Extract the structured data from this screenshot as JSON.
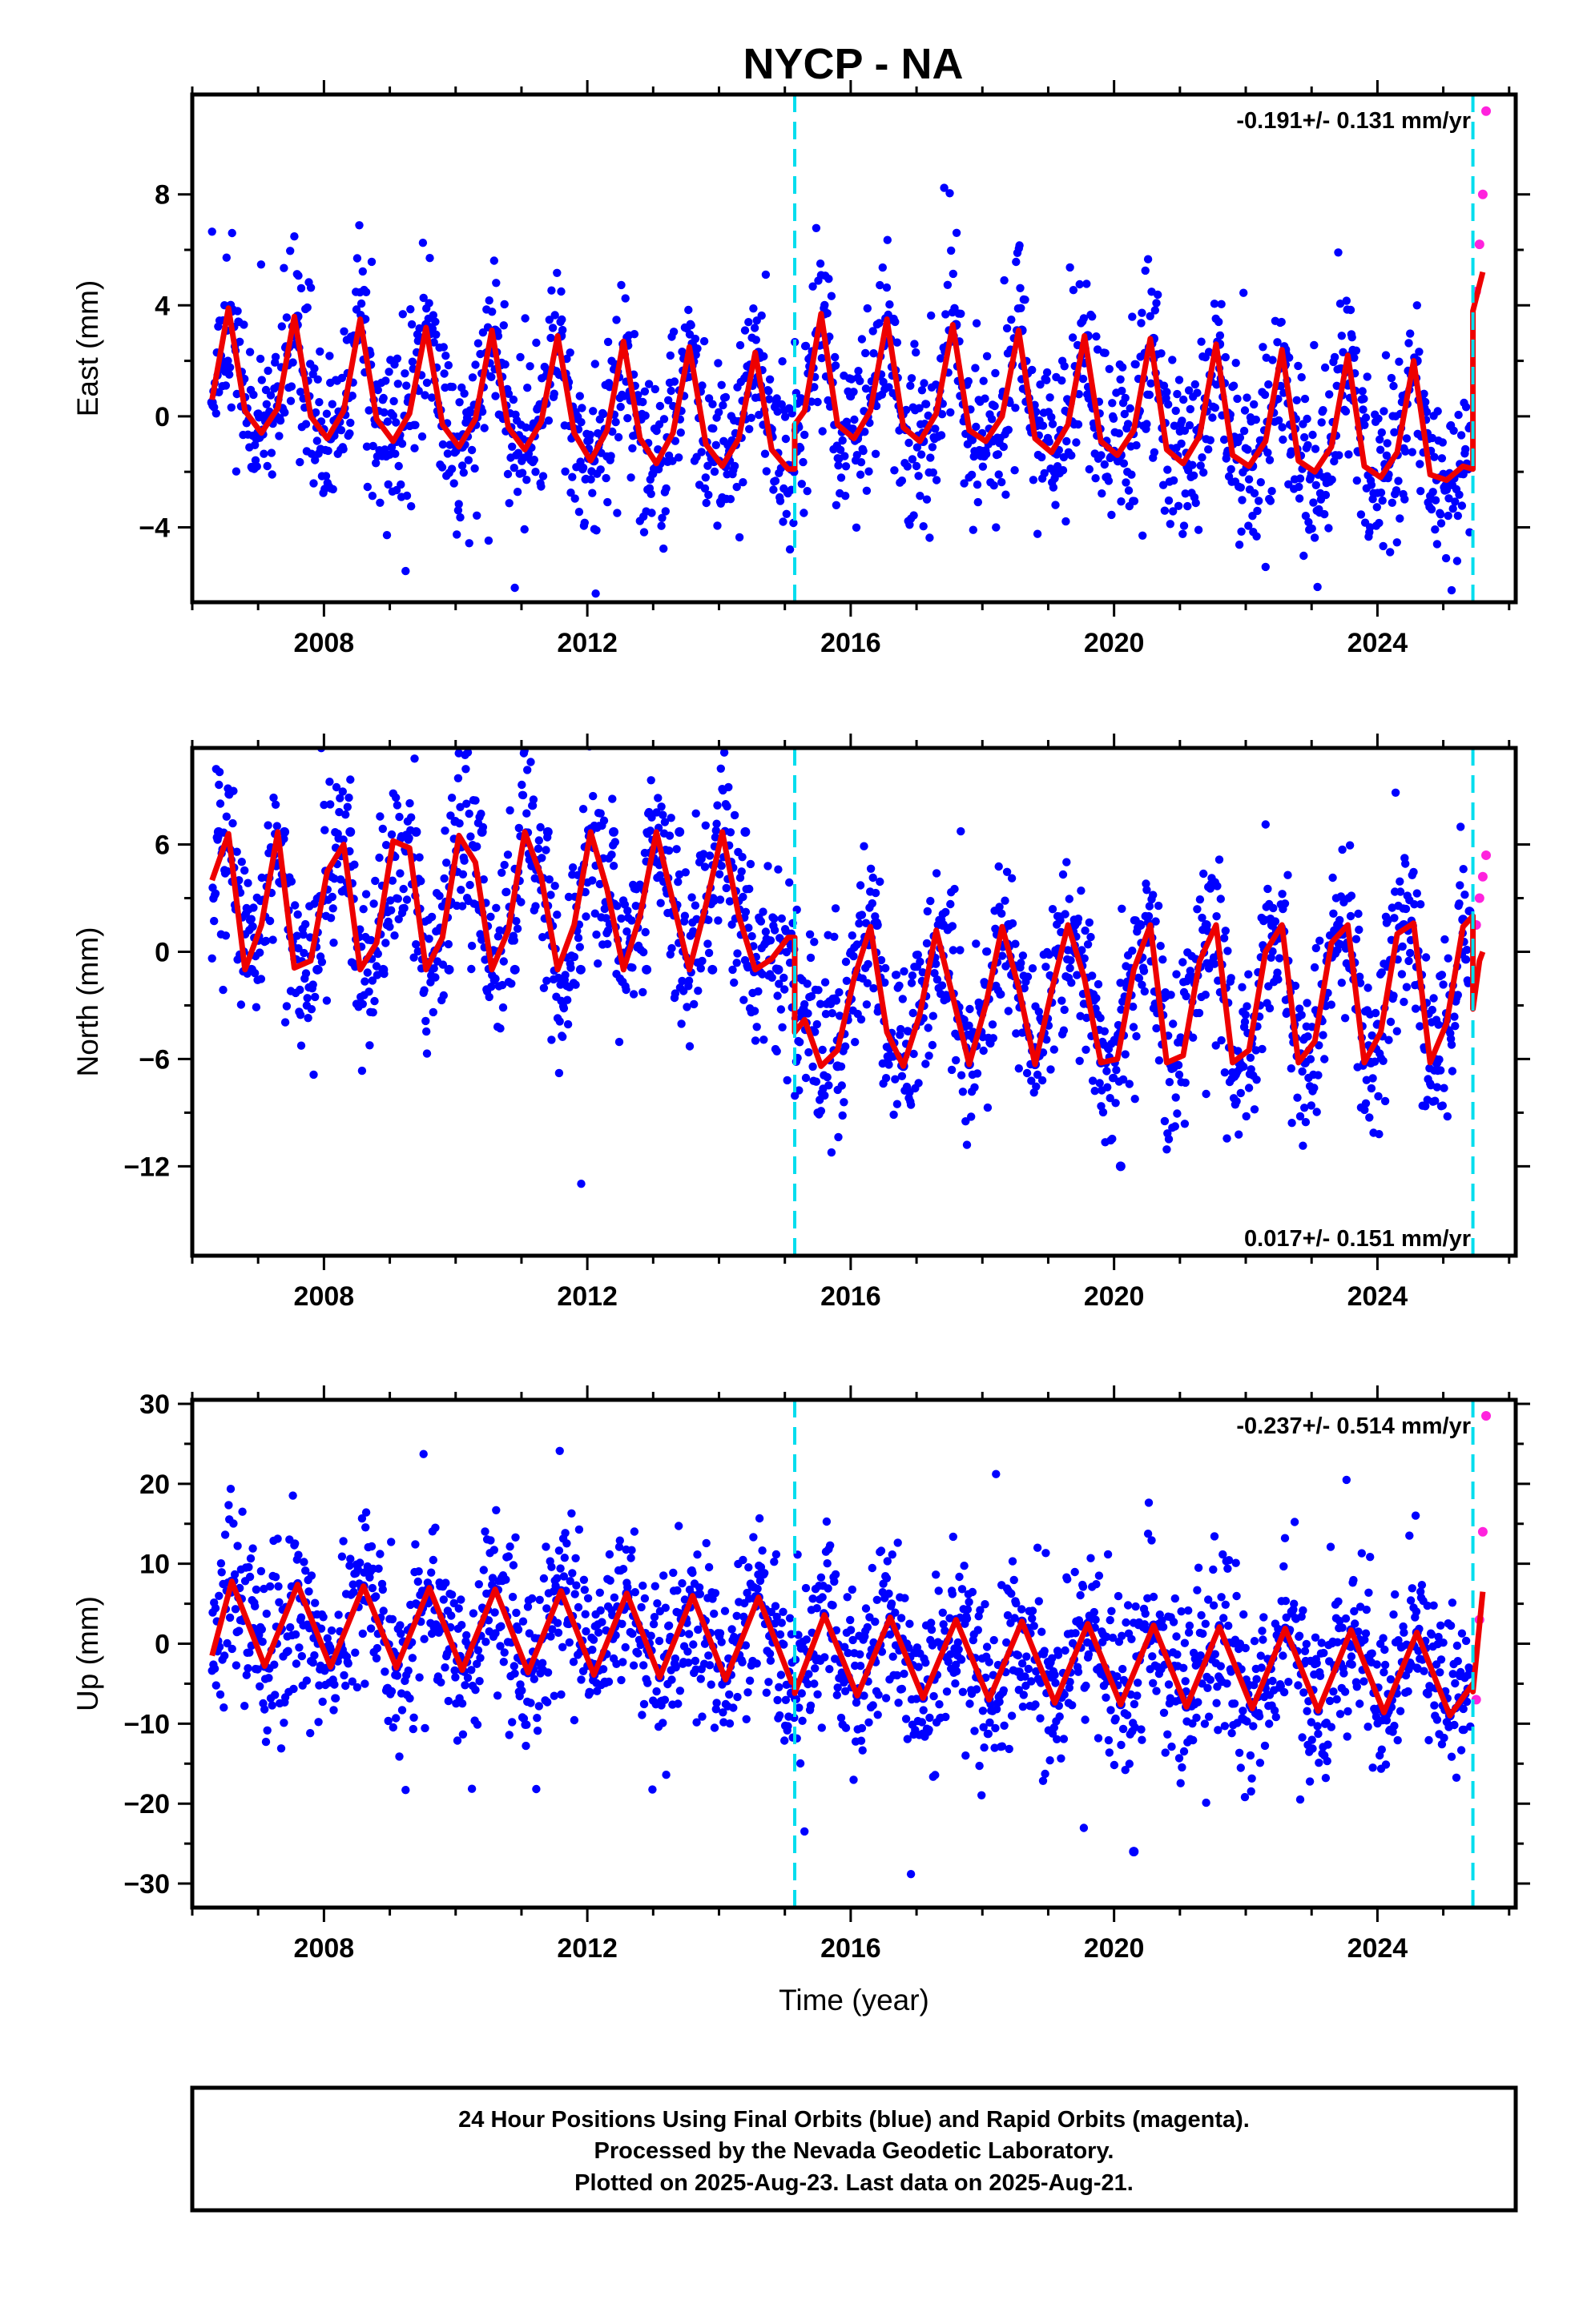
{
  "page": {
    "title": "NYCP - NA"
  },
  "caption": {
    "lines": [
      "24 Hour Positions Using Final Orbits (blue) and Rapid Orbits (magenta).",
      "Processed by the Nevada Geodetic Laboratory.",
      "Plotted on 2025-Aug-23. Last data on 2025-Aug-21."
    ]
  },
  "colors": {
    "final_orbits": "#0000ff",
    "rapid_orbits": "#ff22dd",
    "model": "#ee0000",
    "breaks": "#00ddee",
    "frame": "#000000"
  },
  "chart_data": [
    {
      "type": "scatter",
      "panel": "east",
      "title": "NYCP - NA",
      "xlabel": "",
      "ylabel": "East (mm)",
      "xlim": [
        2006.0,
        2026.1
      ],
      "ylim": [
        -6.7,
        11.6
      ],
      "xticks": [
        2008,
        2012,
        2016,
        2020,
        2024
      ],
      "xtick_labels": [
        "2008",
        "2012",
        "2016",
        "2020",
        "2024"
      ],
      "yticks": [
        -4,
        0,
        4,
        8
      ],
      "ytick_labels": [
        "−4",
        "0",
        "4",
        "8"
      ],
      "grid": false,
      "annotations": [
        {
          "text": "-0.191+/- 0.131 mm/yr",
          "position": "top-right"
        }
      ],
      "breaks": [
        2015.15,
        2025.45
      ],
      "series": [
        {
          "name": "Final Orbits",
          "kind": "points",
          "x": [
            2006.3,
            2006.6,
            2007.0,
            2007.6,
            2008.1,
            2008.6,
            2009.1,
            2009.6,
            2010.1,
            2010.6,
            2011.1,
            2011.6,
            2012.1,
            2012.6,
            2013.1,
            2013.6,
            2014.1,
            2014.6,
            2015.1,
            2015.6,
            2016.1,
            2016.6,
            2017.1,
            2017.6,
            2018.1,
            2018.6,
            2019.1,
            2019.6,
            2020.1,
            2020.6,
            2021.1,
            2021.6,
            2022.1,
            2022.6,
            2023.1,
            2023.6,
            2024.1,
            2024.6,
            2025.1
          ],
          "y": [
            0.5,
            3.8,
            -0.6,
            3.6,
            -0.8,
            3.5,
            -0.9,
            3.2,
            -1.1,
            3.1,
            -1.2,
            2.9,
            -1.6,
            2.7,
            -1.7,
            2.5,
            -1.8,
            2.3,
            -1.9,
            3.7,
            -0.8,
            3.5,
            -0.9,
            3.3,
            -0.9,
            3.1,
            -1.3,
            2.9,
            -1.4,
            2.8,
            -1.7,
            2.6,
            -1.8,
            2.4,
            -2.0,
            2.2,
            -2.2,
            2.0,
            -2.3
          ]
        },
        {
          "name": "Rapid Orbits",
          "kind": "points",
          "x": [
            2025.5,
            2025.55,
            2025.6,
            2025.65
          ],
          "y": [
            4.5,
            6.2,
            8.0,
            11.0
          ]
        },
        {
          "name": "Model",
          "kind": "line",
          "x": [
            2006.3,
            2006.55,
            2006.8,
            2007.05,
            2007.3,
            2007.55,
            2007.8,
            2008.05,
            2008.3,
            2008.55,
            2008.8,
            2009.05,
            2009.3,
            2009.55,
            2009.8,
            2010.05,
            2010.3,
            2010.55,
            2010.8,
            2011.05,
            2011.3,
            2011.55,
            2011.8,
            2012.05,
            2012.3,
            2012.55,
            2012.8,
            2013.05,
            2013.3,
            2013.55,
            2013.8,
            2014.05,
            2014.3,
            2014.55,
            2014.8,
            2015.05,
            2015.15,
            2015.15,
            2015.3,
            2015.55,
            2015.8,
            2016.05,
            2016.3,
            2016.55,
            2016.8,
            2017.05,
            2017.3,
            2017.55,
            2017.8,
            2018.05,
            2018.3,
            2018.55,
            2018.8,
            2019.05,
            2019.3,
            2019.55,
            2019.8,
            2020.05,
            2020.3,
            2020.55,
            2020.8,
            2021.05,
            2021.3,
            2021.55,
            2021.8,
            2022.05,
            2022.3,
            2022.55,
            2022.8,
            2023.05,
            2023.3,
            2023.55,
            2023.8,
            2024.05,
            2024.3,
            2024.55,
            2024.8,
            2025.05,
            2025.3,
            2025.45,
            2025.45,
            2025.6
          ],
          "y": [
            0.6,
            3.9,
            0.2,
            -0.6,
            0.3,
            3.6,
            0.0,
            -0.8,
            0.2,
            3.5,
            -0.1,
            -0.9,
            0.1,
            3.2,
            -0.3,
            -1.1,
            -0.1,
            3.1,
            -0.4,
            -1.2,
            -0.2,
            2.9,
            -0.6,
            -1.6,
            -0.5,
            2.7,
            -0.8,
            -1.7,
            -0.6,
            2.5,
            -1.0,
            -1.8,
            -0.8,
            2.3,
            -1.2,
            -1.9,
            -1.9,
            -0.3,
            0.2,
            3.7,
            -0.3,
            -0.8,
            0.2,
            3.5,
            -0.4,
            -0.9,
            0.1,
            3.3,
            -0.5,
            -0.9,
            0.0,
            3.1,
            -0.8,
            -1.3,
            -0.3,
            2.9,
            -0.9,
            -1.4,
            -0.5,
            2.8,
            -1.2,
            -1.7,
            -0.7,
            2.6,
            -1.4,
            -1.8,
            -0.9,
            2.4,
            -1.6,
            -2.0,
            -1.1,
            2.2,
            -1.8,
            -2.2,
            -1.3,
            2.0,
            -2.1,
            -2.3,
            -1.8,
            -1.9,
            3.8,
            5.2
          ]
        }
      ]
    },
    {
      "type": "scatter",
      "panel": "north",
      "xlabel": "",
      "ylabel": "North (mm)",
      "xlim": [
        2006.0,
        2026.1
      ],
      "ylim": [
        -17.0,
        11.4
      ],
      "xticks": [
        2008,
        2012,
        2016,
        2020,
        2024
      ],
      "xtick_labels": [
        "2008",
        "2012",
        "2016",
        "2020",
        "2024"
      ],
      "yticks": [
        -12,
        -6,
        0,
        6
      ],
      "ytick_labels": [
        "−12",
        "−6",
        "0",
        "6"
      ],
      "grid": false,
      "annotations": [
        {
          "text": "0.017+/- 0.151 mm/yr",
          "position": "bottom-right"
        }
      ],
      "breaks": [
        2015.15,
        2025.45
      ],
      "series": [
        {
          "name": "Final Orbits",
          "kind": "points",
          "x": [
            2006.4,
            2006.9,
            2007.4,
            2007.9,
            2008.4,
            2008.9,
            2009.4,
            2009.9,
            2010.4,
            2010.9,
            2011.4,
            2011.9,
            2012.4,
            2012.9,
            2013.4,
            2013.9,
            2014.4,
            2014.9,
            2015.8,
            2016.4,
            2016.8,
            2017.4,
            2017.8,
            2018.4,
            2018.8,
            2019.4,
            2019.8,
            2020.1,
            2020.4,
            2020.9,
            2021.4,
            2021.9,
            2022.4,
            2022.9,
            2023.4,
            2023.9,
            2024.4,
            2024.9,
            2025.3
          ],
          "y": [
            6.7,
            -1.0,
            6.7,
            -1.0,
            6.7,
            -1.0,
            6.7,
            -1.0,
            6.7,
            -1.0,
            6.7,
            -1.0,
            6.7,
            -1.0,
            6.7,
            -1.0,
            6.7,
            -1.0,
            -6.4,
            1.5,
            -6.4,
            1.5,
            -6.3,
            1.5,
            -6.3,
            1.5,
            -6.2,
            -12.0,
            1.5,
            -6.2,
            1.5,
            -6.2,
            1.5,
            -6.2,
            1.5,
            -6.2,
            1.5,
            -6.2,
            1.8
          ]
        },
        {
          "name": "Rapid Orbits",
          "kind": "points",
          "x": [
            2025.5,
            2025.55,
            2025.6,
            2025.65
          ],
          "y": [
            1.5,
            3.0,
            4.2,
            5.4
          ]
        },
        {
          "name": "Model",
          "kind": "line",
          "x": [
            2006.3,
            2006.55,
            2006.8,
            2007.05,
            2007.3,
            2007.55,
            2007.8,
            2008.05,
            2008.3,
            2008.55,
            2008.8,
            2009.05,
            2009.3,
            2009.55,
            2009.8,
            2010.05,
            2010.3,
            2010.55,
            2010.8,
            2011.05,
            2011.3,
            2011.55,
            2011.8,
            2012.05,
            2012.3,
            2012.55,
            2012.8,
            2013.05,
            2013.3,
            2013.55,
            2013.8,
            2014.05,
            2014.3,
            2014.55,
            2014.8,
            2015.05,
            2015.15,
            2015.15,
            2015.3,
            2015.55,
            2015.8,
            2016.05,
            2016.3,
            2016.55,
            2016.8,
            2017.05,
            2017.3,
            2017.55,
            2017.8,
            2018.05,
            2018.3,
            2018.55,
            2018.8,
            2019.05,
            2019.3,
            2019.55,
            2019.8,
            2020.05,
            2020.3,
            2020.55,
            2020.8,
            2021.05,
            2021.3,
            2021.55,
            2021.8,
            2022.05,
            2022.3,
            2022.55,
            2022.8,
            2023.05,
            2023.3,
            2023.55,
            2023.8,
            2024.05,
            2024.3,
            2024.55,
            2024.8,
            2025.05,
            2025.3,
            2025.45,
            2025.45,
            2025.55,
            2025.6
          ],
          "y": [
            4.0,
            6.6,
            -1.0,
            1.5,
            6.7,
            -0.9,
            -0.5,
            4.5,
            6.0,
            -1.0,
            0.5,
            6.2,
            5.8,
            -1.0,
            0.8,
            6.5,
            5.0,
            -1.0,
            1.2,
            6.7,
            4.2,
            -1.0,
            1.5,
            6.7,
            3.5,
            -1.0,
            2.0,
            6.7,
            2.8,
            -1.0,
            2.6,
            6.7,
            2.0,
            -1.0,
            -0.4,
            0.8,
            0.8,
            -4.5,
            -3.8,
            -6.4,
            -5.5,
            -1.5,
            1.4,
            -4.5,
            -6.4,
            -3.5,
            1.2,
            -2.5,
            -6.3,
            -3.0,
            1.4,
            -2.0,
            -6.3,
            -2.2,
            1.5,
            -1.5,
            -6.2,
            -6.0,
            -1.0,
            1.5,
            -6.2,
            -5.8,
            -0.5,
            1.5,
            -6.2,
            -5.5,
            0.0,
            1.5,
            -6.2,
            -5.0,
            0.5,
            1.5,
            -6.2,
            -4.5,
            1.0,
            1.6,
            -6.2,
            -4.0,
            1.4,
            2.0,
            -3.2,
            -0.5,
            0.0
          ]
        }
      ]
    },
    {
      "type": "scatter",
      "panel": "up",
      "xlabel": "Time (year)",
      "ylabel": "Up (mm)",
      "xlim": [
        2006.0,
        2026.1
      ],
      "ylim": [
        -33.0,
        30.5
      ],
      "xticks": [
        2008,
        2012,
        2016,
        2020,
        2024
      ],
      "xtick_labels": [
        "2008",
        "2012",
        "2016",
        "2020",
        "2024"
      ],
      "yticks": [
        -30,
        -20,
        -10,
        0,
        10,
        20,
        30
      ],
      "ytick_labels": [
        "−30",
        "−20",
        "−10",
        "0",
        "10",
        "20",
        "30"
      ],
      "grid": false,
      "annotations": [
        {
          "text": "-0.237+/- 0.514 mm/yr",
          "position": "top-right"
        }
      ],
      "breaks": [
        2015.15,
        2025.45
      ],
      "series": [
        {
          "name": "Final Orbits",
          "kind": "points",
          "x": [
            2006.6,
            2007.1,
            2007.6,
            2008.1,
            2008.6,
            2009.1,
            2009.6,
            2010.1,
            2010.6,
            2011.1,
            2011.6,
            2012.1,
            2012.6,
            2013.1,
            2013.6,
            2014.1,
            2014.6,
            2015.1,
            2015.6,
            2016.1,
            2016.6,
            2017.1,
            2017.6,
            2018.1,
            2018.6,
            2019.1,
            2019.6,
            2020.1,
            2020.3,
            2020.6,
            2021.1,
            2021.6,
            2022.1,
            2022.6,
            2023.1,
            2023.6,
            2024.1,
            2024.6,
            2025.1
          ],
          "y": [
            7.8,
            -2.8,
            7.4,
            -2.9,
            7.2,
            -3.0,
            7.0,
            -3.3,
            6.8,
            -3.6,
            6.6,
            -3.9,
            6.3,
            -4.2,
            6.0,
            -4.5,
            5.8,
            -6.2,
            3.6,
            -6.5,
            3.3,
            -6.8,
            3.0,
            -7.0,
            2.8,
            -7.4,
            2.5,
            -7.6,
            -26.0,
            2.3,
            -7.9,
            2.1,
            -8.1,
            1.9,
            -8.4,
            1.7,
            -8.6,
            1.4,
            -9.0
          ]
        },
        {
          "name": "Rapid Orbits",
          "kind": "points",
          "x": [
            2025.5,
            2025.55,
            2025.6,
            2025.65
          ],
          "y": [
            -7.0,
            3.0,
            14.0,
            28.5
          ]
        },
        {
          "name": "Model",
          "kind": "line",
          "x": [
            2006.3,
            2006.6,
            2007.1,
            2007.6,
            2008.1,
            2008.6,
            2009.1,
            2009.6,
            2010.1,
            2010.6,
            2011.1,
            2011.6,
            2012.1,
            2012.6,
            2013.1,
            2013.6,
            2014.1,
            2014.6,
            2015.1,
            2015.15,
            2015.15,
            2015.6,
            2016.1,
            2016.6,
            2017.1,
            2017.6,
            2018.1,
            2018.6,
            2019.1,
            2019.6,
            2020.1,
            2020.6,
            2021.1,
            2021.6,
            2022.1,
            2022.6,
            2023.1,
            2023.6,
            2024.1,
            2024.6,
            2025.1,
            2025.45,
            2025.45,
            2025.6
          ],
          "y": [
            -1.5,
            7.8,
            -2.8,
            7.4,
            -2.9,
            7.2,
            -3.0,
            7.0,
            -3.3,
            6.8,
            -3.6,
            6.6,
            -3.9,
            6.3,
            -4.2,
            6.0,
            -4.5,
            5.8,
            -4.8,
            -4.9,
            -6.2,
            3.6,
            -6.5,
            3.3,
            -6.8,
            3.0,
            -7.0,
            2.8,
            -7.4,
            2.5,
            -7.6,
            2.3,
            -7.9,
            2.1,
            -8.1,
            1.9,
            -8.4,
            1.7,
            -8.6,
            1.4,
            -9.0,
            -5.0,
            -6.0,
            6.5
          ]
        }
      ]
    }
  ]
}
